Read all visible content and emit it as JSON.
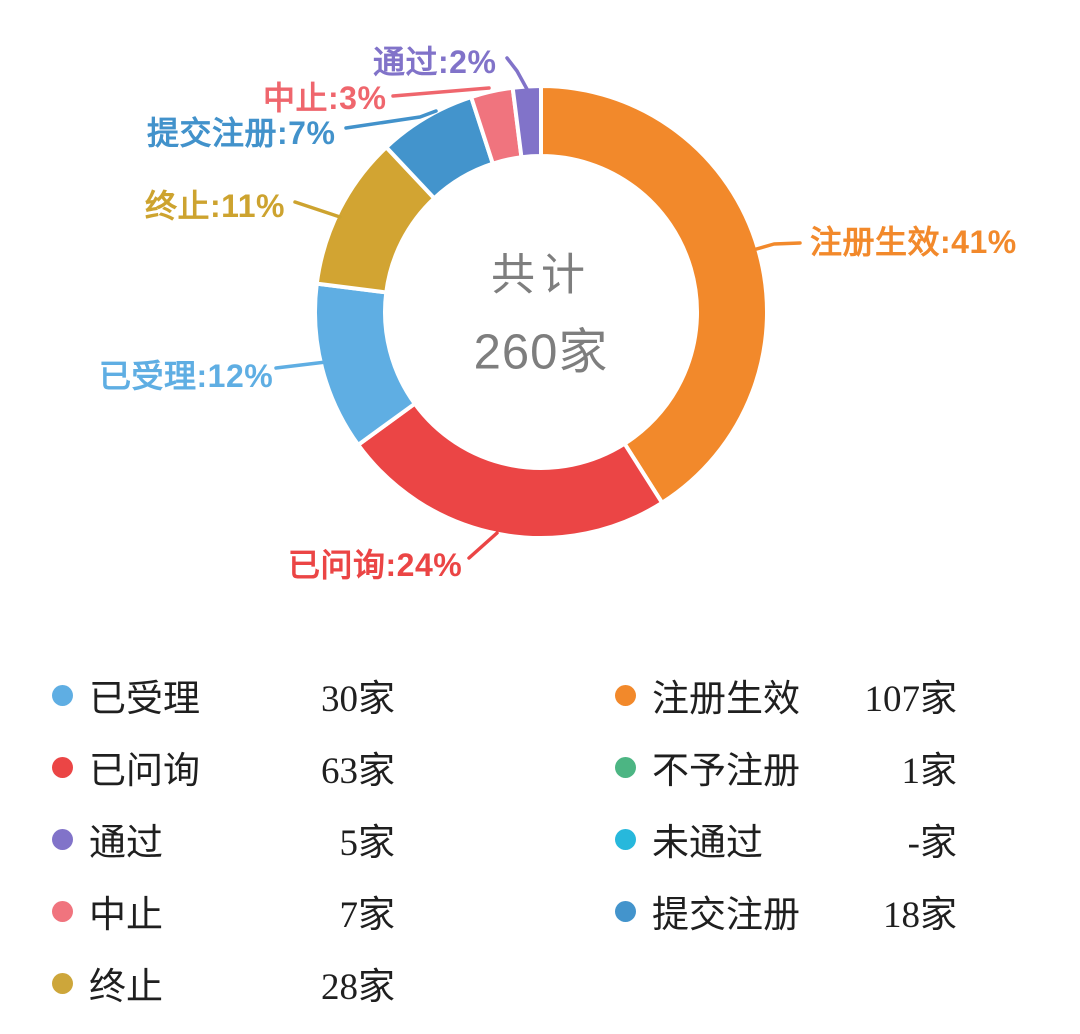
{
  "chart_data": {
    "type": "pie",
    "subtype": "donut",
    "title": "",
    "center_label": {
      "line1": "共计",
      "line2": "260家",
      "color": "#7E7E7E"
    },
    "unit": "家",
    "legend_position": "bottom",
    "slices": [
      {
        "name": "注册生效",
        "percent": 41,
        "count": 107,
        "color": "#F2892B"
      },
      {
        "name": "已问询",
        "percent": 24,
        "count": 63,
        "color": "#EB4545"
      },
      {
        "name": "已受理",
        "percent": 12,
        "count": 30,
        "color": "#5FAEE3"
      },
      {
        "name": "终止",
        "percent": 11,
        "count": 28,
        "color": "#D2A432"
      },
      {
        "name": "提交注册",
        "percent": 7,
        "count": 18,
        "color": "#4394CC"
      },
      {
        "name": "中止",
        "percent": 3,
        "count": 7,
        "color": "#F0747E"
      },
      {
        "name": "通过",
        "percent": 2,
        "count": 5,
        "color": "#8173C9"
      }
    ],
    "callouts": [
      {
        "text": "通过:2%",
        "color": "#8173C9"
      },
      {
        "text": "中止:3%",
        "color": "#EF666D"
      },
      {
        "text": "提交注册:7%",
        "color": "#4292CB"
      },
      {
        "text": "终止:11%",
        "color": "#CDA32F"
      },
      {
        "text": "已受理:12%",
        "color": "#5FAEE3"
      },
      {
        "text": "已问询:24%",
        "color": "#EB4545"
      },
      {
        "text": "注册生效:41%",
        "color": "#F2892B"
      }
    ],
    "legend": {
      "left": [
        {
          "label": "已受理",
          "count": "30家",
          "color": "#5FAEE3"
        },
        {
          "label": "已问询",
          "count": "63家",
          "color": "#EB4545"
        },
        {
          "label": "通过",
          "count": "5家",
          "color": "#8173C9"
        },
        {
          "label": "中止",
          "count": "7家",
          "color": "#F0747E"
        },
        {
          "label": "终止",
          "count": "28家",
          "color": "#CDA63A"
        }
      ],
      "right": [
        {
          "label": "注册生效",
          "count": "107家",
          "color": "#F2892B"
        },
        {
          "label": "不予注册",
          "count": "1家",
          "color": "#4CB583"
        },
        {
          "label": "未通过",
          "count": "-家",
          "color": "#27B8DC"
        },
        {
          "label": "提交注册",
          "count": "18家",
          "color": "#4394CC"
        }
      ]
    }
  }
}
